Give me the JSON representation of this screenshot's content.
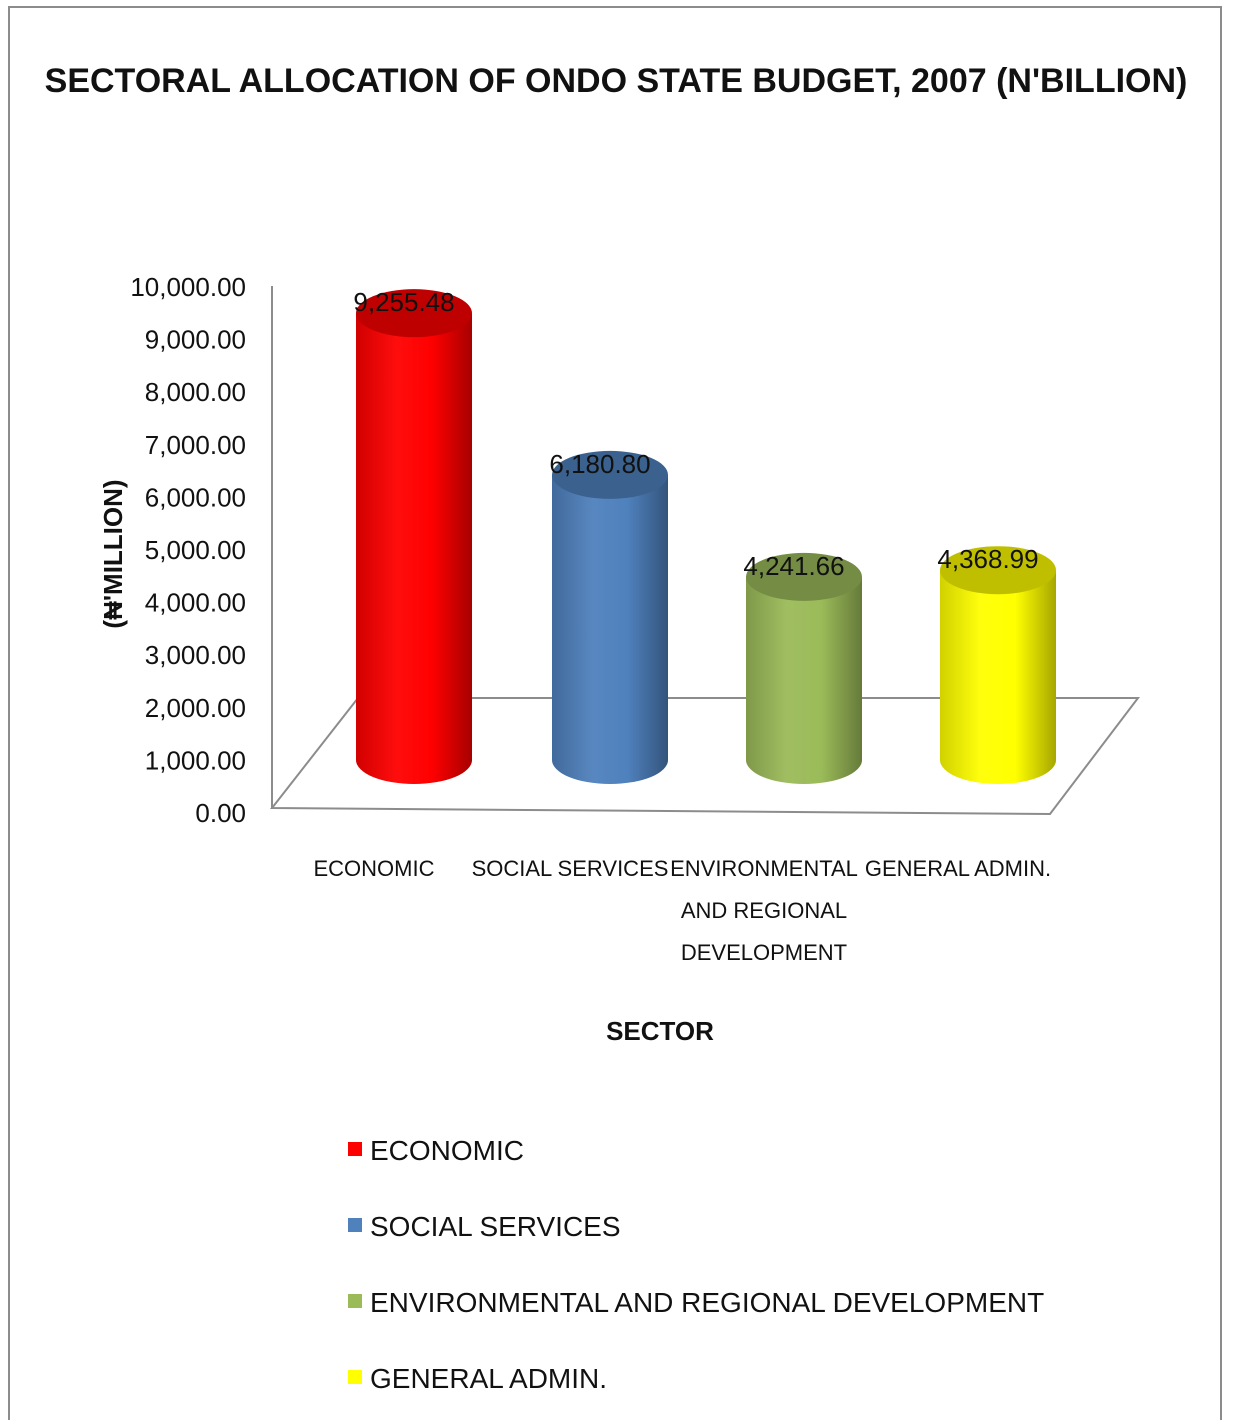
{
  "chart_data": {
    "type": "bar",
    "style": "3d-cylinder",
    "title": "SECTORAL ALLOCATION OF ONDO STATE BUDGET, 2007 (N'BILLION)",
    "xlabel": "SECTOR",
    "ylabel": "(₦'MILLION)",
    "ylim": [
      0,
      10000
    ],
    "y_tick_labels": [
      "0.00",
      "1,000.00",
      "2,000.00",
      "3,000.00",
      "4,000.00",
      "5,000.00",
      "6,000.00",
      "7,000.00",
      "8,000.00",
      "9,000.00",
      "10,000.00"
    ],
    "y_ticks": [
      0,
      1000,
      2000,
      3000,
      4000,
      5000,
      6000,
      7000,
      8000,
      9000,
      10000
    ],
    "categories": [
      {
        "label_lines": [
          "ECONOMIC"
        ]
      },
      {
        "label_lines": [
          "SOCIAL SERVICES"
        ]
      },
      {
        "label_lines": [
          "ENVIRONMENTAL",
          "AND REGIONAL",
          "DEVELOPMENT"
        ]
      },
      {
        "label_lines": [
          "GENERAL ADMIN."
        ]
      }
    ],
    "values": [
      9255.48,
      6180.8,
      4241.66,
      4368.99
    ],
    "data_labels": [
      "9,255.48",
      "6,180.80",
      "4,241.66",
      "4,368.99"
    ],
    "colors": [
      "#ff0000",
      "#4f81bd",
      "#9bbb59",
      "#ffff00"
    ],
    "legend": {
      "placement": "bottom",
      "entries": [
        "ECONOMIC",
        "SOCIAL SERVICES",
        "ENVIRONMENTAL AND REGIONAL DEVELOPMENT",
        "GENERAL ADMIN."
      ]
    },
    "grid": false
  }
}
